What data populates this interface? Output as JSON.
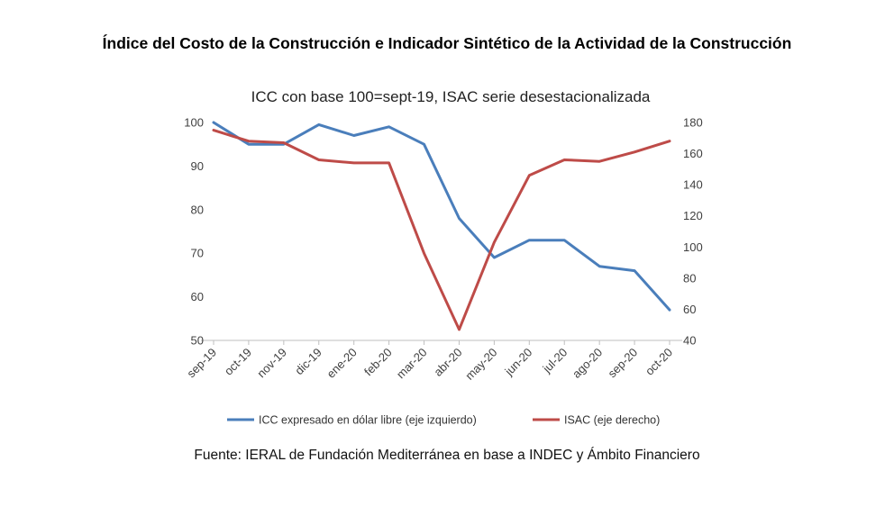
{
  "header": {
    "title": "Índice del Costo de la Construcción e Indicador Sintético de la Actividad de la Construcción",
    "subtitle": "ICC con base 100=sept-19, ISAC serie desestacionalizada"
  },
  "footer": {
    "source": "Fuente: IERAL de Fundación Mediterránea en base a INDEC y Ámbito Financiero"
  },
  "chart_data": {
    "type": "line",
    "title": "Índice del Costo de la Construcción e Indicador Sintético de la Actividad de la Construcción",
    "subtitle": "ICC con base 100=sept-19, ISAC serie desestacionalizada",
    "categories": [
      "sep-19",
      "oct-19",
      "nov-19",
      "dic-19",
      "ene-20",
      "feb-20",
      "mar-20",
      "abr-20",
      "may-20",
      "jun-20",
      "jul-20",
      "ago-20",
      "sep-20",
      "oct-20"
    ],
    "series": [
      {
        "name": "ICC expresado en dólar libre (eje izquierdo)",
        "axis": "left",
        "color": "#4a7ebb",
        "values": [
          100,
          95,
          95,
          99.5,
          97,
          99,
          95,
          78,
          69,
          73,
          73,
          67,
          66,
          57
        ]
      },
      {
        "name": "ISAC (eje derecho)",
        "axis": "right",
        "color": "#be4b48",
        "values": [
          175,
          168,
          167,
          156,
          154,
          154,
          96,
          47,
          103,
          146,
          156,
          155,
          161,
          168
        ]
      }
    ],
    "y_left": {
      "min": 50,
      "max": 100,
      "ticks": [
        50,
        60,
        70,
        80,
        90,
        100
      ]
    },
    "y_right": {
      "min": 40,
      "max": 180,
      "ticks": [
        40,
        60,
        80,
        100,
        120,
        140,
        160,
        180
      ]
    },
    "grid": false,
    "legend_position": "bottom"
  }
}
